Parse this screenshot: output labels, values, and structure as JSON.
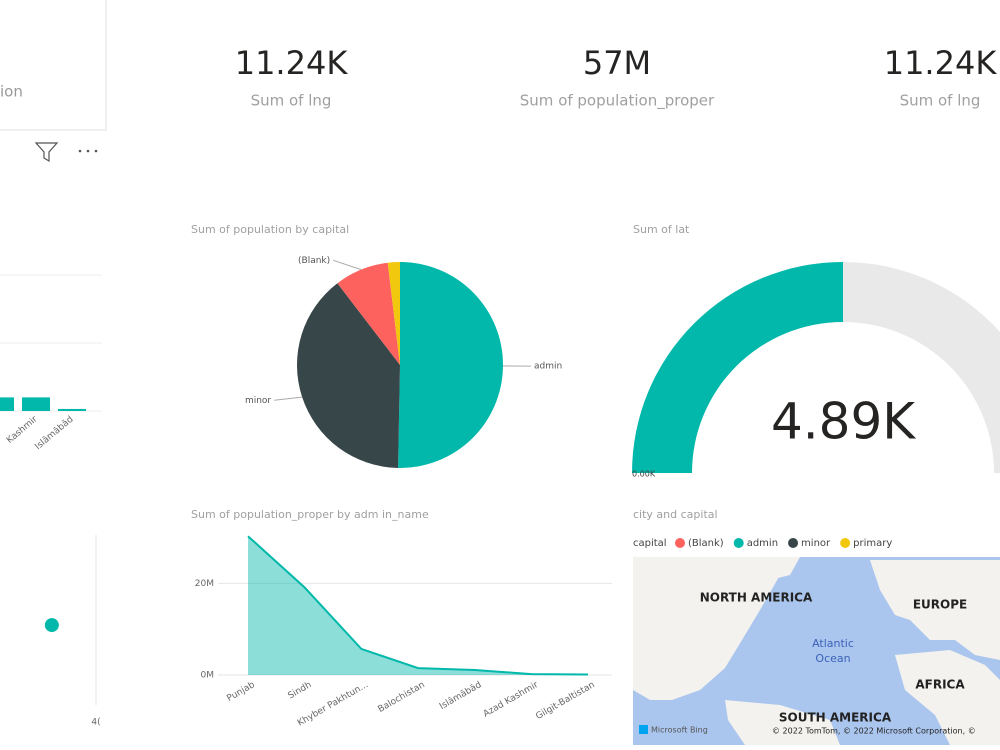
{
  "partial_card": {
    "text": "ion"
  },
  "cards": [
    {
      "value": "11.24K",
      "label": "Sum of lng"
    },
    {
      "value": "57M",
      "label": "Sum of population_proper"
    },
    {
      "value": "11.24K",
      "label": "Sum of lng"
    }
  ],
  "chart_data": [
    {
      "type": "bar",
      "categories": [
        null,
        "Kashmir",
        "Islāmābād"
      ],
      "values": [
        1.0,
        1.0,
        0.15
      ],
      "color": "#01b8aa",
      "ylim": [
        0,
        10
      ]
    },
    {
      "type": "pie",
      "title": "Sum of population by capital",
      "categories": [
        "admin",
        "minor",
        "(Blank)",
        "primary"
      ],
      "values": [
        50.3,
        39.3,
        8.5,
        1.9
      ],
      "colors": [
        "#01b8aa",
        "#374649",
        "#fd625e",
        "#f2c80f"
      ],
      "labels": [
        "admin",
        "minor",
        "(Blank)",
        null
      ]
    },
    {
      "type": "gauge",
      "title": "Sum of lat",
      "value": 4890,
      "value_label": "4.89K",
      "min": {
        "value": 0,
        "label": "0.00K"
      },
      "max": 9780,
      "color": "#01b8aa",
      "track_color": "#e9e9e9"
    },
    {
      "type": "area",
      "title": "Sum of population_proper by adm in_name",
      "categories": [
        "Punjab",
        "Sindh",
        "Khyber Pakhtun...",
        "Balochistan",
        "Islāmābād",
        "Azad Kashmir",
        "Gilgit-Baltistan"
      ],
      "values": [
        30.3,
        19.1,
        5.7,
        1.5,
        1.1,
        0.2,
        0.1
      ],
      "color": "#01b8aa",
      "ylim": [
        0,
        31
      ],
      "yticks": [
        {
          "value": 0,
          "label": "0M"
        },
        {
          "value": 20,
          "label": "20M"
        }
      ],
      "grid": true
    },
    {
      "type": "scatter",
      "x": [
        35.4
      ],
      "values": [
        0.47
      ],
      "color": "#01b8aa",
      "xlim": [
        30,
        40
      ],
      "xticks": [
        {
          "value": 40,
          "label": "4("
        }
      ],
      "ylim": [
        0,
        1
      ]
    }
  ],
  "map": {
    "title": "city and capital",
    "legend_title": "capital",
    "legend": [
      {
        "name": "(Blank)",
        "color": "#fd625e"
      },
      {
        "name": "admin",
        "color": "#01b8aa"
      },
      {
        "name": "minor",
        "color": "#374649"
      },
      {
        "name": "primary",
        "color": "#f2c80f"
      }
    ],
    "labels": [
      "NORTH AMERICA",
      "EUROPE",
      "Atlantic",
      "Ocean",
      "AFRICA",
      "SOUTH AMERICA"
    ],
    "logo": "Microsoft Bing",
    "attribution": "© 2022 TomTom, © 2022 Microsoft Corporation, ©"
  }
}
